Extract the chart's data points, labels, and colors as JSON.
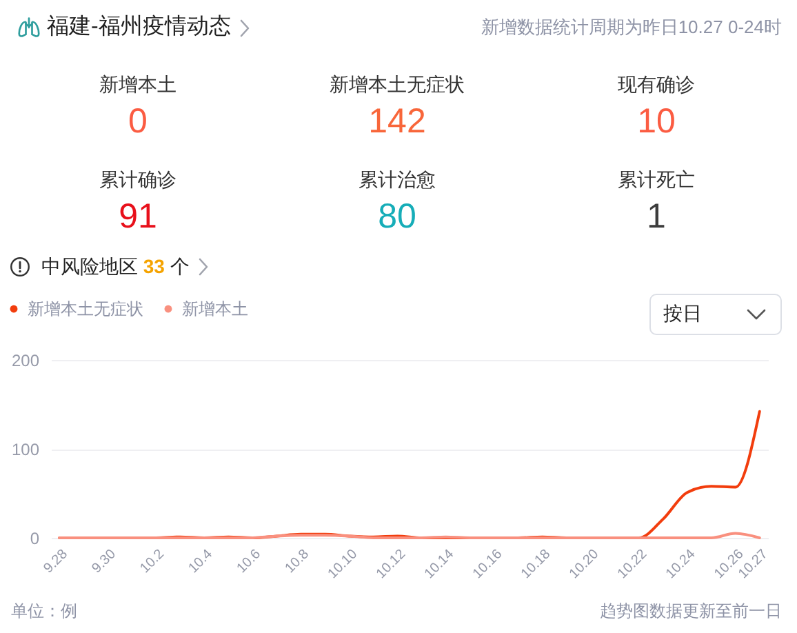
{
  "chart_data": [
    {
      "type": "other",
      "title": "福建-福州疫情动态",
      "subtitle": "新增数据统计周期为昨日10.27 0-24时",
      "categories": [
        "新增本土",
        "新增本土无症状",
        "现有确诊",
        "累计确诊",
        "累计治愈",
        "累计死亡"
      ],
      "values": [
        0,
        142,
        10,
        91,
        80,
        1
      ],
      "colors": [
        "#fb5c42",
        "#f8663a",
        "#fb5c42",
        "#e8101b",
        "#16adb8",
        "#3d3d3d"
      ],
      "data_labels": true,
      "annotations": [
        "中风险地区 33 个"
      ]
    },
    {
      "type": "line",
      "categories": [
        "9.28",
        null,
        "9.30",
        null,
        "10.2",
        null,
        "10.4",
        null,
        "10.6",
        null,
        "10.8",
        null,
        "10.10",
        null,
        "10.12",
        null,
        "10.14",
        null,
        "10.16",
        null,
        "10.18",
        null,
        "10.20",
        null,
        "10.22",
        null,
        "10.24",
        null,
        "10.26",
        "10.27"
      ],
      "series": [
        {
          "name": "新增本土无症状",
          "color": "#f23d0d",
          "values": [
            0,
            0,
            0,
            0,
            0,
            1,
            0,
            1,
            0,
            2,
            4,
            4,
            2,
            1,
            2,
            0,
            0,
            0,
            0,
            0,
            1,
            0,
            0,
            0,
            0,
            21,
            51,
            58,
            57,
            142
          ]
        },
        {
          "name": "新增本土",
          "color": "#f9907f",
          "values": [
            0,
            0,
            0,
            0,
            0,
            0,
            0,
            0,
            0,
            2,
            3,
            3,
            2,
            0,
            0,
            0,
            1,
            0,
            0,
            0,
            0,
            0,
            0,
            0,
            0,
            0,
            0,
            0,
            5,
            0
          ]
        }
      ],
      "ylim": [
        0,
        200
      ],
      "yticks": [
        0,
        100,
        200
      ],
      "grid": "y",
      "legend": "top left",
      "annotations": [
        "按日",
        "单位：例",
        "趋势图数据更新至前一日"
      ]
    }
  ]
}
